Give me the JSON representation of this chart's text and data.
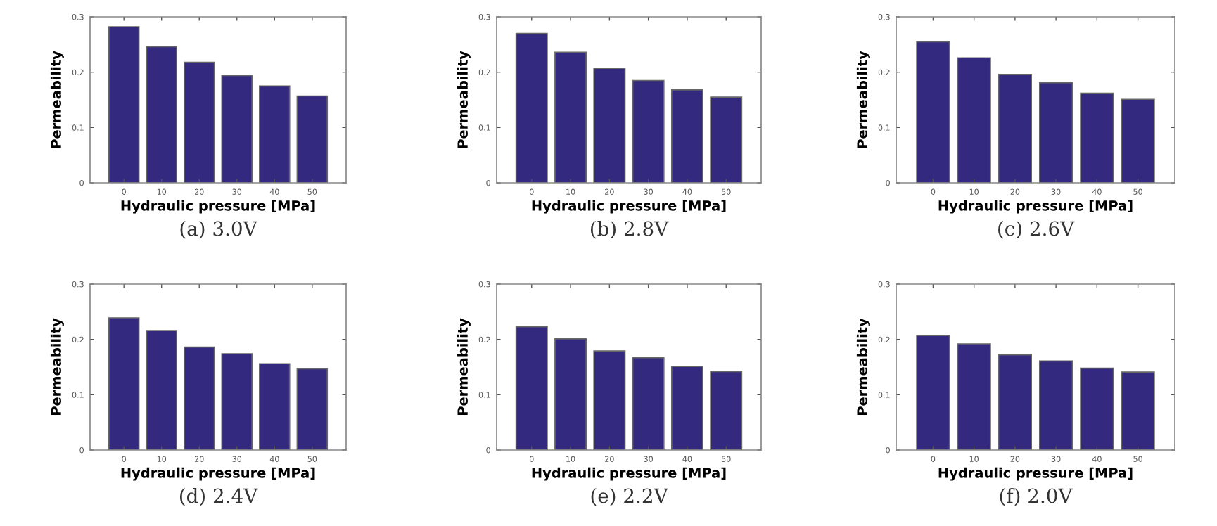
{
  "chart_data": [
    {
      "type": "bar",
      "title": "(a) 3.0V",
      "xlabel": "Hydraulic pressure [MPa]",
      "ylabel": "Permeability",
      "categories": [
        "0",
        "10",
        "20",
        "30",
        "40",
        "50"
      ],
      "values": [
        0.282,
        0.246,
        0.218,
        0.194,
        0.175,
        0.157
      ],
      "color": "#332a80",
      "ylim": [
        0,
        0.3
      ],
      "yticks": [
        0,
        0.1,
        0.2,
        0.3
      ],
      "grid": false
    },
    {
      "type": "bar",
      "title": "(b) 2.8V",
      "xlabel": "Hydraulic pressure [MPa]",
      "ylabel": "Permeability",
      "categories": [
        "0",
        "10",
        "20",
        "30",
        "40",
        "50"
      ],
      "values": [
        0.27,
        0.236,
        0.207,
        0.185,
        0.168,
        0.155
      ],
      "color": "#332a80",
      "ylim": [
        0,
        0.3
      ],
      "yticks": [
        0,
        0.1,
        0.2,
        0.3
      ],
      "grid": false
    },
    {
      "type": "bar",
      "title": "(c) 2.6V",
      "xlabel": "Hydraulic pressure [MPa]",
      "ylabel": "Permeability",
      "categories": [
        "0",
        "10",
        "20",
        "30",
        "40",
        "50"
      ],
      "values": [
        0.255,
        0.226,
        0.196,
        0.181,
        0.162,
        0.151
      ],
      "color": "#332a80",
      "ylim": [
        0,
        0.3
      ],
      "yticks": [
        0,
        0.1,
        0.2,
        0.3
      ],
      "grid": false
    },
    {
      "type": "bar",
      "title": "(d) 2.4V",
      "xlabel": "Hydraulic pressure [MPa]",
      "ylabel": "Permeability",
      "categories": [
        "0",
        "10",
        "20",
        "30",
        "40",
        "50"
      ],
      "values": [
        0.239,
        0.216,
        0.186,
        0.174,
        0.156,
        0.147
      ],
      "color": "#332a80",
      "ylim": [
        0,
        0.3
      ],
      "yticks": [
        0,
        0.1,
        0.2,
        0.3
      ],
      "grid": false
    },
    {
      "type": "bar",
      "title": "(e) 2.2V",
      "xlabel": "Hydraulic pressure [MPa]",
      "ylabel": "Permeability",
      "categories": [
        "0",
        "10",
        "20",
        "30",
        "40",
        "50"
      ],
      "values": [
        0.223,
        0.201,
        0.179,
        0.167,
        0.151,
        0.142
      ],
      "color": "#332a80",
      "ylim": [
        0,
        0.3
      ],
      "yticks": [
        0,
        0.1,
        0.2,
        0.3
      ],
      "grid": false
    },
    {
      "type": "bar",
      "title": "(f) 2.0V",
      "xlabel": "Hydraulic pressure [MPa]",
      "ylabel": "Permeability",
      "categories": [
        "0",
        "10",
        "20",
        "30",
        "40",
        "50"
      ],
      "values": [
        0.207,
        0.192,
        0.172,
        0.161,
        0.148,
        0.141
      ],
      "color": "#332a80",
      "ylim": [
        0,
        0.3
      ],
      "yticks": [
        0,
        0.1,
        0.2,
        0.3
      ],
      "grid": false
    }
  ]
}
